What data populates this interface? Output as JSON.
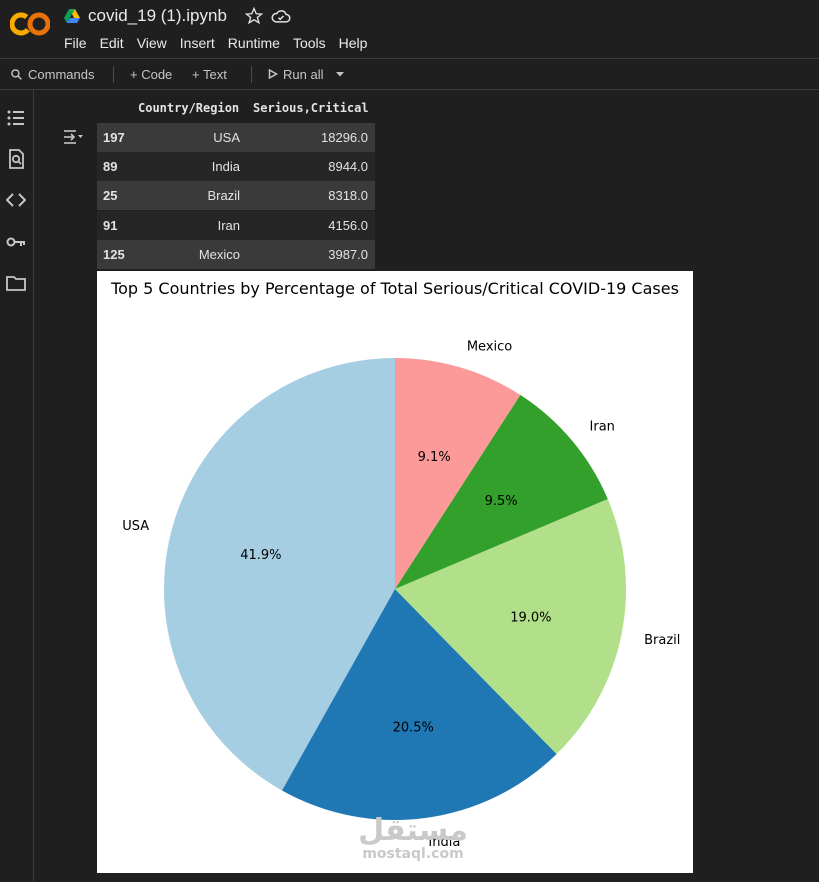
{
  "header": {
    "logo_text": "CO",
    "notebook_title": "covid_19 (1).ipynb",
    "menu": [
      "File",
      "Edit",
      "View",
      "Insert",
      "Runtime",
      "Tools",
      "Help"
    ]
  },
  "toolbar": {
    "commands_label": "Commands",
    "code_label": "+ Code",
    "text_label": "+ Text",
    "run_all_label": "Run all"
  },
  "sidebar": {
    "icons": [
      "table-of-contents-icon",
      "find-replace-icon",
      "code-snippets-icon",
      "secrets-key-icon",
      "files-folder-icon"
    ]
  },
  "dataframe": {
    "columns": [
      "Country/Region",
      "Serious,Critical"
    ],
    "rows": [
      {
        "index": "197",
        "country": "USA",
        "value": "18296.0"
      },
      {
        "index": "89",
        "country": "India",
        "value": "8944.0"
      },
      {
        "index": "25",
        "country": "Brazil",
        "value": "8318.0"
      },
      {
        "index": "91",
        "country": "Iran",
        "value": "4156.0"
      },
      {
        "index": "125",
        "country": "Mexico",
        "value": "3987.0"
      }
    ]
  },
  "chart_data": {
    "type": "pie",
    "title": "Top 5 Countries by Percentage of Total Serious/Critical COVID-19 Cases",
    "categories": [
      "USA",
      "India",
      "Brazil",
      "Iran",
      "Mexico"
    ],
    "values": [
      18296,
      8944,
      8318,
      4156,
      3987
    ],
    "labels_pct": [
      "41.9%",
      "20.5%",
      "19.0%",
      "9.5%",
      "9.1%"
    ],
    "colors": [
      "#a6cee3",
      "#1f78b4",
      "#b2df8a",
      "#33a02c",
      "#fb9a99"
    ],
    "start_angle_deg": 90,
    "direction": "counterclockwise"
  },
  "watermark": {
    "arabic": "مستقل",
    "latin": "mostaql.com"
  }
}
